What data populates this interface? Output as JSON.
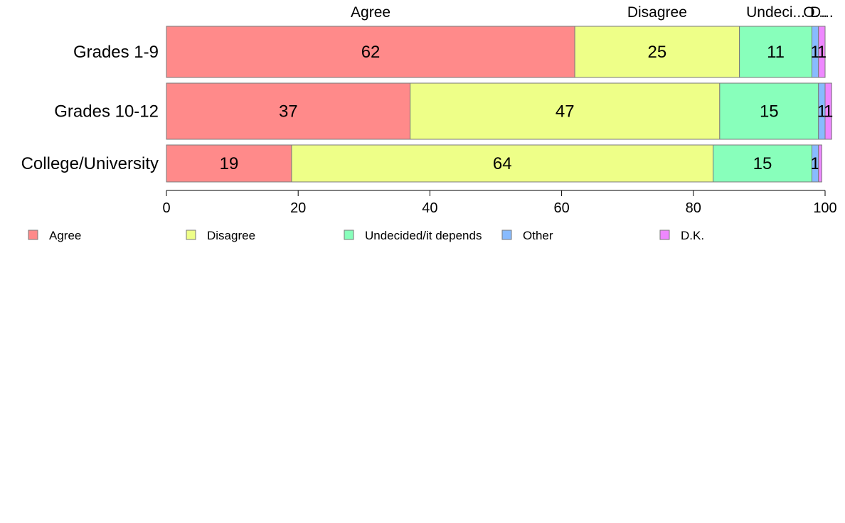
{
  "chart_data": {
    "type": "bar",
    "orientation": "horizontal",
    "stacked": true,
    "categories": [
      "Grades 1-9",
      "Grades 10-12",
      "College/University"
    ],
    "series": [
      {
        "name": "Agree",
        "color": "#ff8a8a",
        "values": [
          62,
          37,
          19
        ]
      },
      {
        "name": "Disagree",
        "color": "#eeff88",
        "values": [
          25,
          47,
          64
        ]
      },
      {
        "name": "Undecided/it depends",
        "color": "#88ffbb",
        "values": [
          11,
          15,
          15
        ]
      },
      {
        "name": "Other",
        "color": "#88bbff",
        "values": [
          1,
          1,
          1
        ]
      },
      {
        "name": "D.K.",
        "color": "#ee88ff",
        "values": [
          1,
          1,
          0.5
        ]
      }
    ],
    "segment_labels": [
      [
        "62",
        "25",
        "11",
        "1",
        "1"
      ],
      [
        "37",
        "47",
        "15",
        "1",
        "1"
      ],
      [
        "19",
        "64",
        "15",
        "1",
        ""
      ]
    ],
    "top_labels": [
      "Agree",
      "Disagree",
      "Undeci...",
      "O...",
      "D..."
    ],
    "xlim": [
      0,
      100
    ],
    "xticks": [
      0,
      20,
      40,
      60,
      80,
      100
    ],
    "legend_position": "bottom",
    "title": "",
    "xlabel": "",
    "ylabel": ""
  }
}
